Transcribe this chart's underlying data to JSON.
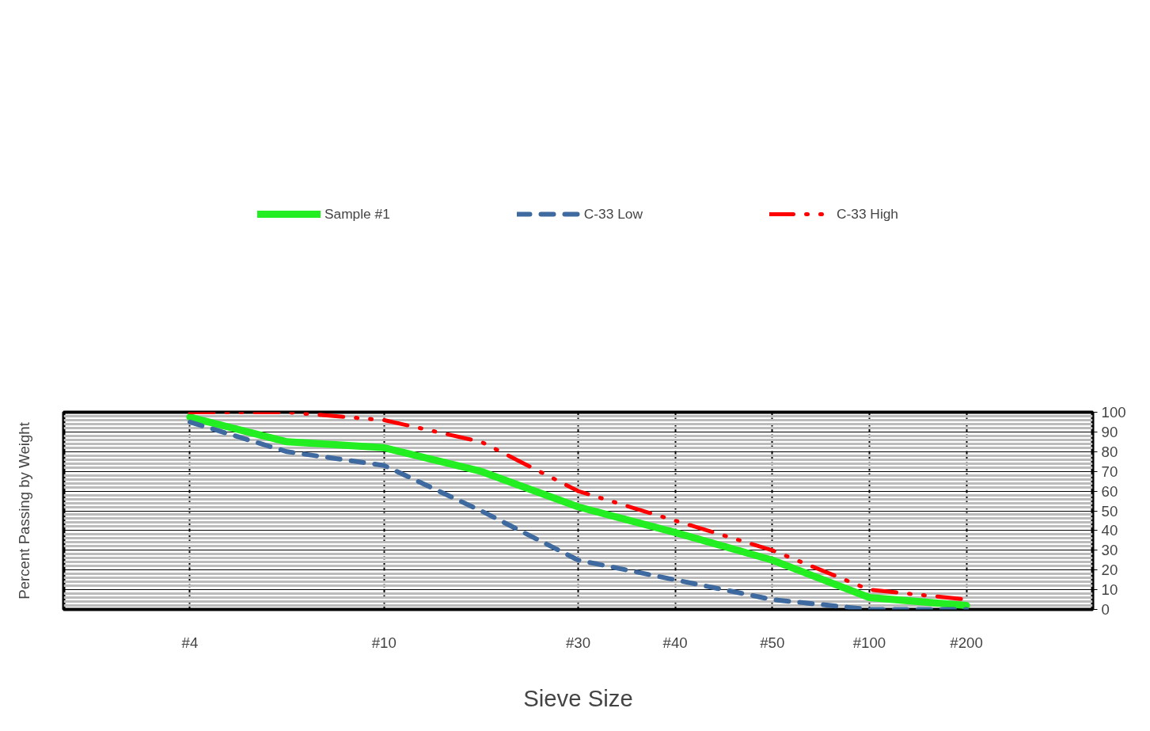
{
  "chart_data": {
    "type": "line",
    "xlabel": "Sieve Size",
    "ylabel": "Percent Passing by Weight",
    "categories": [
      "#4",
      null,
      "#10",
      null,
      "#30",
      "#40",
      "#50",
      "#100",
      "#200"
    ],
    "ylim": [
      0,
      100
    ],
    "yticks": [
      0,
      10,
      20,
      30,
      40,
      50,
      60,
      70,
      80,
      90,
      100
    ],
    "grid": true,
    "legend": "top",
    "marker": "none",
    "series": [
      {
        "name": "Sample #1",
        "color": "#22ee22",
        "line_style": "solid",
        "values": [
          97.5,
          85,
          82,
          70,
          52,
          39,
          25,
          6,
          2
        ]
      },
      {
        "name": "C-33 Low",
        "color": "#3e6aa0",
        "line_style": "dashed",
        "values": [
          95,
          80,
          73,
          50,
          25,
          15,
          5,
          0,
          0
        ]
      },
      {
        "name": "C-33 High",
        "color": "#ff0000",
        "line_style": "dashdot",
        "values": [
          100,
          100,
          96,
          85,
          60,
          45,
          30,
          10,
          5
        ]
      }
    ]
  }
}
